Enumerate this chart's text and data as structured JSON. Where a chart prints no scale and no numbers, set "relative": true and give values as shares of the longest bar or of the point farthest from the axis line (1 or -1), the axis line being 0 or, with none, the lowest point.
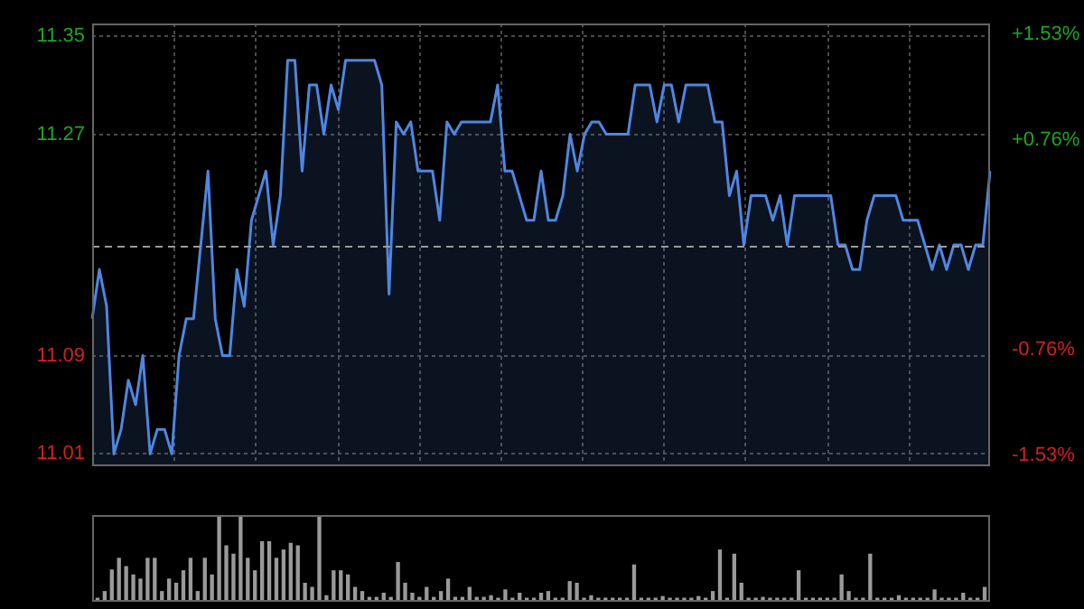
{
  "chart_data": [
    {
      "type": "area",
      "categories": [
        null,
        null,
        null,
        null,
        null,
        null,
        null,
        null,
        null,
        null,
        null,
        null,
        null,
        null,
        null,
        null,
        null,
        null,
        null,
        null,
        null,
        null,
        null,
        null,
        null,
        null,
        null,
        null,
        null,
        null,
        null,
        null,
        null,
        null,
        null,
        null,
        null,
        null,
        null,
        null,
        null,
        null,
        null,
        null,
        null,
        null,
        null,
        null,
        null,
        null,
        null,
        null,
        null,
        null,
        null,
        null,
        null,
        null,
        null,
        null,
        null,
        null,
        null,
        null,
        null,
        null,
        null,
        null,
        null,
        null,
        null,
        null,
        null,
        null,
        null,
        null,
        null,
        null,
        null,
        null,
        null,
        null,
        null,
        null,
        null,
        null,
        null,
        null,
        null,
        null,
        null,
        null,
        null,
        null,
        null,
        null,
        null,
        null,
        null,
        null,
        null,
        null,
        null,
        null,
        null,
        null,
        null,
        null,
        null,
        null,
        null,
        null,
        null,
        null,
        null,
        null,
        null,
        null,
        null,
        null,
        null,
        null,
        null,
        null,
        null
      ],
      "ylim": [
        11.0,
        11.36
      ],
      "yticks": [
        11.01,
        11.09,
        11.27,
        11.35
      ],
      "y2lim": [
        -1.61,
        1.61
      ],
      "y2ticks": [
        {
          "value": -1.53,
          "label": "-1.53%"
        },
        {
          "value": -0.76,
          "label": "-0.76%"
        },
        {
          "value": 0.76,
          "label": "+0.76%"
        },
        {
          "value": 1.53,
          "label": "+1.53%"
        }
      ],
      "tick_labels": "y",
      "grid": true,
      "ref_lines": [
        {
          "axis": "y",
          "value": 11.18,
          "color": "#9a9a9a",
          "line_style": "dashed"
        }
      ],
      "series": [
        {
          "color": "#4f86e0",
          "values": [
            11.12,
            11.16,
            11.13,
            11.01,
            11.03,
            11.07,
            11.05,
            11.09,
            11.01,
            11.03,
            11.03,
            11.01,
            11.09,
            11.12,
            11.12,
            11.18,
            11.24,
            11.12,
            11.09,
            11.09,
            11.16,
            11.13,
            11.2,
            11.22,
            11.24,
            11.18,
            11.22,
            11.33,
            11.33,
            11.24,
            11.31,
            11.31,
            11.27,
            11.31,
            11.29,
            11.33,
            11.33,
            11.33,
            11.33,
            11.33,
            11.31,
            11.14,
            11.28,
            11.27,
            11.28,
            11.24,
            11.24,
            11.24,
            11.2,
            11.28,
            11.27,
            11.28,
            11.28,
            11.28,
            11.28,
            11.28,
            11.31,
            11.24,
            11.24,
            11.22,
            11.2,
            11.2,
            11.24,
            11.2,
            11.2,
            11.22,
            11.27,
            11.24,
            11.27,
            11.28,
            11.28,
            11.27,
            11.27,
            11.27,
            11.27,
            11.31,
            11.31,
            11.31,
            11.28,
            11.31,
            11.31,
            11.28,
            11.31,
            11.31,
            11.31,
            11.31,
            11.28,
            11.28,
            11.22,
            11.24,
            11.18,
            11.22,
            11.22,
            11.22,
            11.2,
            11.22,
            11.18,
            11.22,
            11.22,
            11.22,
            11.22,
            11.22,
            11.22,
            11.18,
            11.18,
            11.16,
            11.16,
            11.2,
            11.22,
            11.22,
            11.22,
            11.22,
            11.2,
            11.2,
            11.2,
            11.18,
            11.16,
            11.18,
            11.16,
            11.18,
            11.18,
            11.16,
            11.18,
            11.18,
            11.24
          ]
        }
      ]
    },
    {
      "type": "bar",
      "relative": true,
      "tick_labels": false,
      "categories": [
        null,
        null,
        null,
        null,
        null,
        null,
        null,
        null,
        null,
        null,
        null,
        null,
        null,
        null,
        null,
        null,
        null,
        null,
        null,
        null,
        null,
        null,
        null,
        null,
        null,
        null,
        null,
        null,
        null,
        null,
        null,
        null,
        null,
        null,
        null,
        null,
        null,
        null,
        null,
        null,
        null,
        null,
        null,
        null,
        null,
        null,
        null,
        null,
        null,
        null,
        null,
        null,
        null,
        null,
        null,
        null,
        null,
        null,
        null,
        null,
        null,
        null,
        null,
        null,
        null,
        null,
        null,
        null,
        null,
        null,
        null,
        null,
        null,
        null,
        null,
        null,
        null,
        null,
        null,
        null,
        null,
        null,
        null,
        null,
        null,
        null,
        null,
        null,
        null,
        null,
        null,
        null,
        null,
        null,
        null,
        null,
        null,
        null,
        null,
        null,
        null,
        null,
        null,
        null,
        null,
        null,
        null,
        null,
        null,
        null,
        null,
        null,
        null,
        null,
        null,
        null,
        null,
        null,
        null,
        null,
        null,
        null,
        null,
        null,
        null
      ],
      "series": [
        {
          "color": "#9a9a9a",
          "values": [
            0.02,
            0.1,
            0.36,
            0.5,
            0.4,
            0.3,
            0.25,
            0.5,
            0.5,
            0.1,
            0.25,
            0.2,
            0.35,
            0.5,
            0.1,
            0.5,
            0.3,
            1,
            0.65,
            0.55,
            1,
            0.5,
            0.35,
            0.7,
            0.7,
            0.5,
            0.6,
            0.68,
            0.65,
            0.2,
            0.15,
            1,
            0.05,
            0.35,
            0.35,
            0.3,
            0.15,
            0.1,
            0.03,
            0.03,
            0.08,
            0.03,
            0.45,
            0.2,
            0.08,
            0.03,
            0.15,
            0.03,
            0.1,
            0.25,
            0.03,
            0.03,
            0.15,
            0.03,
            0.03,
            0.05,
            0.02,
            0.12,
            0.02,
            0.08,
            0.02,
            0.02,
            0.08,
            0.1,
            0.02,
            0.02,
            0.22,
            0.2,
            0.02,
            0.05,
            0.02,
            0.02,
            0.02,
            0.02,
            0.02,
            0.42,
            0.02,
            0.02,
            0.02,
            0.04,
            0.02,
            0.02,
            0.02,
            0.02,
            0.04,
            0.02,
            0.1,
            0.6,
            0.02,
            0.55,
            0.2,
            0.02,
            0.02,
            0.03,
            0.02,
            0.02,
            0.02,
            0.02,
            0.35,
            0.02,
            0.02,
            0.02,
            0.02,
            0.02,
            0.3,
            0.1,
            0.02,
            0.02,
            0.55,
            0.02,
            0.02,
            0.02,
            0.05,
            0.02,
            0.02,
            0.02,
            0.02,
            0.12,
            0.02,
            0.02,
            0.02,
            0.08,
            0.02,
            0.02,
            0.15
          ]
        }
      ]
    }
  ]
}
